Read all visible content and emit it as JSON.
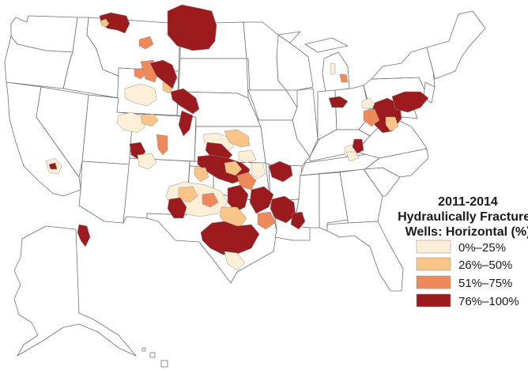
{
  "legend": {
    "title_lines": [
      "2011-2014",
      "Hydraulically Fractured",
      "Wells: Horizontal (%)"
    ],
    "classes": [
      {
        "label": "0%–25%",
        "color": "#fdeed8"
      },
      {
        "label": "26%–50%",
        "color": "#f8c487"
      },
      {
        "label": "51%–75%",
        "color": "#f0895a"
      },
      {
        "label": "76%–100%",
        "color": "#9b1b1e"
      }
    ]
  },
  "regions": {
    "bakken": 3,
    "montana_nw": 3,
    "montana_small": 1,
    "montana_patch": 2,
    "powder_river": 2,
    "wyoming_a": 0,
    "wyoming_b": 1,
    "wyoming_c": 3,
    "wind_river": 2,
    "dj_basin": 3,
    "colorado_a": 3,
    "piceance": 0,
    "uinta": 1,
    "san_juan": 3,
    "raton": 2,
    "nm_small": 0,
    "kansas_a": 0,
    "kansas_b": 1,
    "kansas_c": 3,
    "kansas_d": 0,
    "anadarko": 3,
    "oklahoma_a": 1,
    "oklahoma_b": 2,
    "oklahoma_c": 0,
    "oklahoma_d": 1,
    "arkoma": 3,
    "permian": 0,
    "permian_a": 1,
    "permian_b": 3,
    "permian_c": 2,
    "barnett": 3,
    "east_texas": 3,
    "texas_central": 1,
    "eagle_ford": 3,
    "gulf_a": 0,
    "haynesville": 3,
    "gulf_b": 2,
    "mississippi": 3,
    "michigan_a": 0,
    "michigan_b": 2,
    "illinois": 3,
    "kentucky_a": 0,
    "kentucky_b": 3,
    "appalachia_a": 3,
    "appalachia_b": 3,
    "appalachia_c": 2,
    "appalachia_d": 1,
    "appalachia_e": 0,
    "virginia": 0,
    "california": 0,
    "california_core": 3,
    "alaska": 3
  }
}
